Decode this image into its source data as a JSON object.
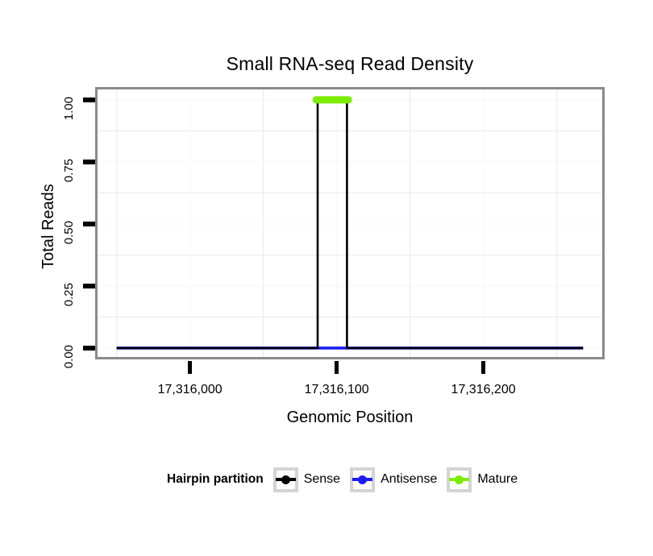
{
  "title": "Small RNA-seq Read Density",
  "x_axis": {
    "label": "Genomic Position",
    "tick_labels": [
      "17,316,000",
      "17,316,100",
      "17,316,200"
    ],
    "tick_values": [
      17316000,
      17316100,
      17316200
    ]
  },
  "y_axis": {
    "label": "Total Reads",
    "tick_labels": [
      "0.00",
      "0.25",
      "0.50",
      "0.75",
      "1.00"
    ],
    "tick_values": [
      0,
      0.25,
      0.5,
      0.75,
      1
    ]
  },
  "legend": {
    "title": "Hairpin partition",
    "items": [
      {
        "label": "Sense",
        "color": "#000000"
      },
      {
        "label": "Antisense",
        "color": "#1c1cf0"
      },
      {
        "label": "Mature",
        "color": "#7cec00"
      }
    ]
  },
  "colors": {
    "panel_border": "#8a8a8a",
    "tick": "#000000",
    "grid_minor": "#efefef",
    "grid_major": "#fafafa",
    "background": "#ffffff"
  },
  "chart_data": {
    "type": "line",
    "title": "Small RNA-seq Read Density",
    "xlabel": "Genomic Position",
    "ylabel": "Total Reads",
    "xlim": [
      17315937,
      17316281
    ],
    "ylim": [
      -0.036,
      1.042
    ],
    "x_tick_values": [
      17316000,
      17316100,
      17316200
    ],
    "y_tick_values": [
      0,
      0.25,
      0.5,
      0.75,
      1
    ],
    "grid_minor_x": [
      17315950,
      17316050,
      17316150,
      17316250
    ],
    "grid_minor_y": [
      0.125,
      0.375,
      0.625,
      0.875
    ],
    "grid": "faint-minor",
    "legend_title": "Hairpin partition",
    "legend_position": "bottom",
    "series": [
      {
        "name": "Antisense",
        "color": "#1c1cf0",
        "points": [
          [
            17315950,
            0
          ],
          [
            17316268,
            0
          ]
        ]
      },
      {
        "name": "Sense",
        "color": "#000000",
        "points": [
          [
            17315950,
            0
          ],
          [
            17316087,
            0
          ],
          [
            17316087,
            1
          ],
          [
            17316107,
            1
          ],
          [
            17316107,
            0
          ],
          [
            17316268,
            0
          ]
        ]
      },
      {
        "name": "Mature",
        "color": "#7cec00",
        "points": [
          [
            17316086,
            1
          ],
          [
            17316108,
            1
          ]
        ]
      }
    ]
  }
}
